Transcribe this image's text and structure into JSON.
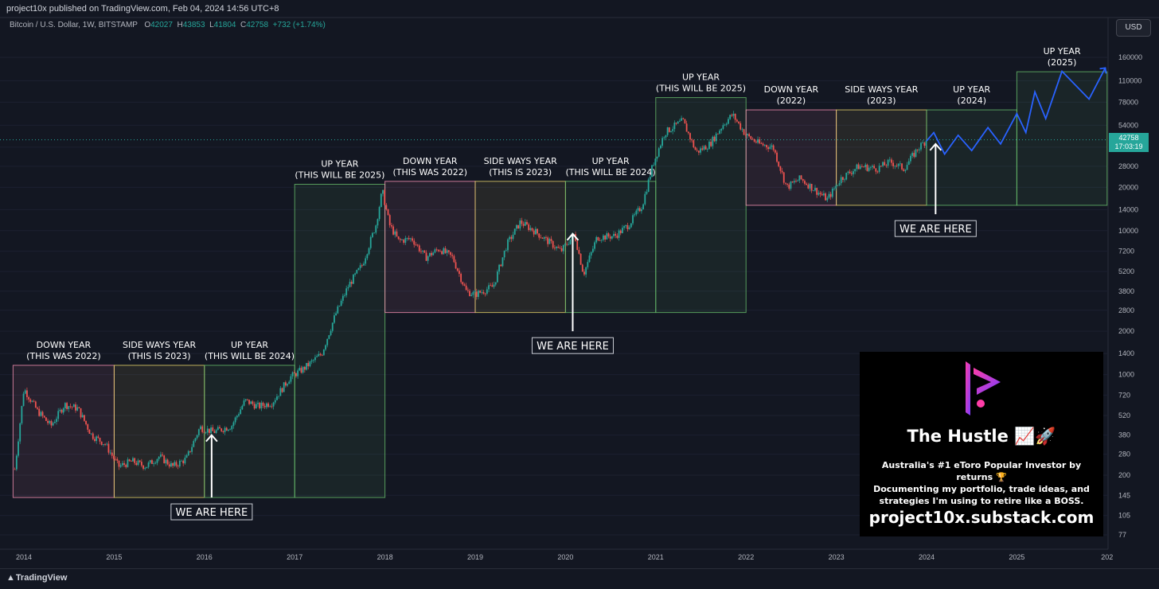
{
  "header": {
    "publisher": "project10x published on TradingView.com, Feb 04, 2024 14:56 UTC+8",
    "symbol": "Bitcoin / U.S. Dollar, 1W, BITSTAMP",
    "ohlc_o_label": "O",
    "ohlc_o": "42027",
    "ohlc_h_label": "H",
    "ohlc_h": "43853",
    "ohlc_l_label": "L",
    "ohlc_l": "41804",
    "ohlc_c_label": "C",
    "ohlc_c": "42758",
    "change": "+732 (+1.74%)",
    "currency": "USD"
  },
  "price_tag": {
    "price": "42758",
    "countdown": "17:03:19"
  },
  "footer": {
    "brand": "TradingView"
  },
  "promo": {
    "title": "The Hustle 📈🚀",
    "line1": "Australia's #1 eToro Popular Investor by returns 🏆",
    "line2": "Documenting my portfolio, trade ideas, and",
    "line3": "strategies I'm using to retire like a BOSS.",
    "url": "project10x.substack.com"
  },
  "colors": {
    "background": "#131722",
    "up_candle": "#26a69a",
    "down_candle": "#ef5350",
    "down_year": "#f48fb1",
    "sideways_year": "#e6d36a",
    "up_year": "#66bb6a",
    "projection": "#2962ff"
  },
  "chart_data": {
    "type": "candlestick",
    "title": "",
    "y_scale": "log",
    "y_ticks": [
      "160000",
      "110000",
      "78000",
      "54000",
      "38000",
      "28000",
      "20000",
      "14000",
      "10000",
      "7200",
      "5200",
      "3800",
      "2800",
      "2000",
      "1400",
      "1000",
      "720",
      "520",
      "380",
      "280",
      "200",
      "145",
      "105",
      "77"
    ],
    "x_ticks": [
      "2014",
      "2015",
      "2016",
      "2017",
      "2018",
      "2019",
      "2020",
      "2021",
      "2022",
      "2023",
      "2024",
      "2025",
      "202"
    ],
    "last_price": 42758,
    "price_path": [
      {
        "x": 2013.9,
        "y": 220
      },
      {
        "x": 2014.0,
        "y": 800
      },
      {
        "x": 2014.15,
        "y": 560
      },
      {
        "x": 2014.3,
        "y": 440
      },
      {
        "x": 2014.45,
        "y": 620
      },
      {
        "x": 2014.6,
        "y": 580
      },
      {
        "x": 2014.75,
        "y": 380
      },
      {
        "x": 2014.9,
        "y": 330
      },
      {
        "x": 2015.05,
        "y": 230
      },
      {
        "x": 2015.2,
        "y": 250
      },
      {
        "x": 2015.35,
        "y": 230
      },
      {
        "x": 2015.5,
        "y": 270
      },
      {
        "x": 2015.65,
        "y": 230
      },
      {
        "x": 2015.8,
        "y": 260
      },
      {
        "x": 2015.95,
        "y": 430
      },
      {
        "x": 2016.1,
        "y": 400
      },
      {
        "x": 2016.3,
        "y": 440
      },
      {
        "x": 2016.45,
        "y": 660
      },
      {
        "x": 2016.6,
        "y": 600
      },
      {
        "x": 2016.75,
        "y": 640
      },
      {
        "x": 2016.95,
        "y": 960
      },
      {
        "x": 2017.1,
        "y": 1100
      },
      {
        "x": 2017.3,
        "y": 1400
      },
      {
        "x": 2017.45,
        "y": 2600
      },
      {
        "x": 2017.6,
        "y": 4200
      },
      {
        "x": 2017.75,
        "y": 5800
      },
      {
        "x": 2017.9,
        "y": 11000
      },
      {
        "x": 2017.97,
        "y": 19000
      },
      {
        "x": 2018.05,
        "y": 11000
      },
      {
        "x": 2018.15,
        "y": 8500
      },
      {
        "x": 2018.3,
        "y": 8800
      },
      {
        "x": 2018.45,
        "y": 6500
      },
      {
        "x": 2018.6,
        "y": 7500
      },
      {
        "x": 2018.75,
        "y": 6500
      },
      {
        "x": 2018.9,
        "y": 3800
      },
      {
        "x": 2019.0,
        "y": 3600
      },
      {
        "x": 2019.2,
        "y": 4100
      },
      {
        "x": 2019.35,
        "y": 8000
      },
      {
        "x": 2019.5,
        "y": 11500
      },
      {
        "x": 2019.65,
        "y": 10000
      },
      {
        "x": 2019.8,
        "y": 8500
      },
      {
        "x": 2019.95,
        "y": 7200
      },
      {
        "x": 2020.1,
        "y": 9500
      },
      {
        "x": 2020.2,
        "y": 5000
      },
      {
        "x": 2020.35,
        "y": 9000
      },
      {
        "x": 2020.55,
        "y": 9200
      },
      {
        "x": 2020.7,
        "y": 11000
      },
      {
        "x": 2020.85,
        "y": 15000
      },
      {
        "x": 2020.97,
        "y": 29000
      },
      {
        "x": 2021.1,
        "y": 48000
      },
      {
        "x": 2021.3,
        "y": 58000
      },
      {
        "x": 2021.45,
        "y": 35000
      },
      {
        "x": 2021.6,
        "y": 40000
      },
      {
        "x": 2021.75,
        "y": 55000
      },
      {
        "x": 2021.85,
        "y": 64000
      },
      {
        "x": 2022.0,
        "y": 46000
      },
      {
        "x": 2022.15,
        "y": 40000
      },
      {
        "x": 2022.3,
        "y": 38000
      },
      {
        "x": 2022.45,
        "y": 20000
      },
      {
        "x": 2022.6,
        "y": 23000
      },
      {
        "x": 2022.75,
        "y": 19500
      },
      {
        "x": 2022.9,
        "y": 16500
      },
      {
        "x": 2023.05,
        "y": 23000
      },
      {
        "x": 2023.25,
        "y": 28000
      },
      {
        "x": 2023.45,
        "y": 27000
      },
      {
        "x": 2023.6,
        "y": 30000
      },
      {
        "x": 2023.75,
        "y": 27000
      },
      {
        "x": 2023.9,
        "y": 37000
      },
      {
        "x": 2024.0,
        "y": 42758
      }
    ],
    "projection": [
      {
        "x": 2024.0,
        "y": 42000
      },
      {
        "x": 2024.08,
        "y": 48000
      },
      {
        "x": 2024.2,
        "y": 34000
      },
      {
        "x": 2024.35,
        "y": 46000
      },
      {
        "x": 2024.5,
        "y": 36000
      },
      {
        "x": 2024.68,
        "y": 52000
      },
      {
        "x": 2024.82,
        "y": 40000
      },
      {
        "x": 2025.0,
        "y": 65000
      },
      {
        "x": 2025.1,
        "y": 48000
      },
      {
        "x": 2025.2,
        "y": 92000
      },
      {
        "x": 2025.32,
        "y": 60000
      },
      {
        "x": 2025.5,
        "y": 128000
      },
      {
        "x": 2025.8,
        "y": 82000
      },
      {
        "x": 2025.98,
        "y": 135000
      }
    ],
    "zones": [
      {
        "label": "DOWN YEAR",
        "sub": "(THIS WAS 2022)",
        "kind": "down",
        "x0": 2013.88,
        "x1": 2015.0,
        "y_low": 140,
        "y_high": 1160
      },
      {
        "label": "SIDE WAYS YEAR",
        "sub": "(THIS IS 2023)",
        "kind": "side",
        "x0": 2015.0,
        "x1": 2016.0,
        "y_low": 140,
        "y_high": 1160
      },
      {
        "label": "UP YEAR",
        "sub": "(THIS WILL BE 2024)",
        "kind": "up",
        "x0": 2016.0,
        "x1": 2017.0,
        "y_low": 140,
        "y_high": 1160
      },
      {
        "label": "UP YEAR",
        "sub": "(THIS WILL BE 2025)",
        "kind": "up",
        "x0": 2017.0,
        "x1": 2018.0,
        "y_low": 140,
        "y_high": 21000
      },
      {
        "label": "DOWN YEAR",
        "sub": "(THIS WAS 2022)",
        "kind": "down",
        "x0": 2018.0,
        "x1": 2019.0,
        "y_low": 2700,
        "y_high": 22000
      },
      {
        "label": "SIDE WAYS YEAR",
        "sub": "(THIS IS 2023)",
        "kind": "side",
        "x0": 2019.0,
        "x1": 2020.0,
        "y_low": 2700,
        "y_high": 22000
      },
      {
        "label": "UP YEAR",
        "sub": "(THIS WILL BE 2024)",
        "kind": "up",
        "x0": 2020.0,
        "x1": 2021.0,
        "y_low": 2700,
        "y_high": 22000
      },
      {
        "label": "UP YEAR",
        "sub": "(THIS WILL BE 2025)",
        "kind": "up",
        "x0": 2021.0,
        "x1": 2022.0,
        "y_low": 2700,
        "y_high": 84000
      },
      {
        "label": "DOWN YEAR",
        "sub": "(2022)",
        "kind": "down",
        "x0": 2022.0,
        "x1": 2023.0,
        "y_low": 15000,
        "y_high": 69000
      },
      {
        "label": "SIDE WAYS YEAR",
        "sub": "(2023)",
        "kind": "side",
        "x0": 2023.0,
        "x1": 2024.0,
        "y_low": 15000,
        "y_high": 69000
      },
      {
        "label": "UP YEAR",
        "sub": "(2024)",
        "kind": "up",
        "x0": 2024.0,
        "x1": 2025.0,
        "y_low": 15000,
        "y_high": 69000
      },
      {
        "label": "UP YEAR",
        "sub": "(2025)",
        "kind": "up",
        "x0": 2025.0,
        "x1": 2026.0,
        "y_low": 15000,
        "y_high": 127000
      }
    ],
    "markers": [
      {
        "label": "WE ARE HERE",
        "x": 2016.08,
        "y_tip": 380,
        "y_tail": 140
      },
      {
        "label": "WE ARE HERE",
        "x": 2020.08,
        "y_tip": 9500,
        "y_tail": 2000
      },
      {
        "label": "WE ARE HERE",
        "x": 2024.1,
        "y_tip": 40000,
        "y_tail": 13000
      }
    ]
  }
}
